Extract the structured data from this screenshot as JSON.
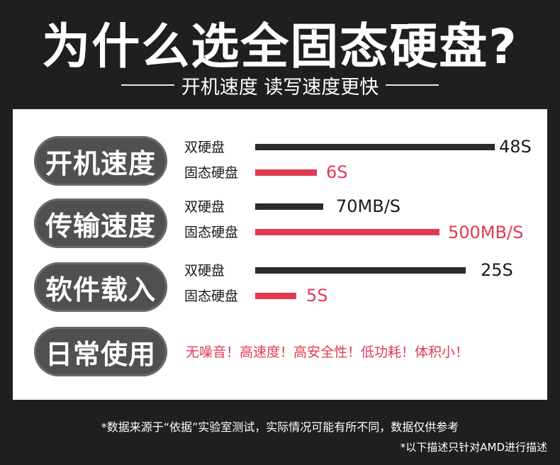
{
  "title": "为什么选全固态硬盘?",
  "subtitle": "开机速度 读写速度更快",
  "rows": [
    {
      "category": "开机速度",
      "hdd": {
        "label": "双硬盘",
        "value": "48S"
      },
      "ssd": {
        "label": "固态硬盘",
        "value": "6S"
      }
    },
    {
      "category": "传输速度",
      "hdd": {
        "label": "双硬盘",
        "value": "70MB/S"
      },
      "ssd": {
        "label": "固态硬盘",
        "value": "500MB/S"
      }
    },
    {
      "category": "软件载入",
      "hdd": {
        "label": "双硬盘",
        "value": "25S"
      },
      "ssd": {
        "label": "固态硬盘",
        "value": "5S"
      }
    }
  ],
  "daily": {
    "category": "日常使用",
    "text": "无噪音！高速度！高安全性！低功耗！体积小！"
  },
  "footnote": "*数据来源于“依据”实验室测试，实际情况可能有所不同，数据仅供参考",
  "footnote2": "*以下描述只针对AMD进行描述",
  "colors": {
    "ssd": "#e03a52",
    "hdd": "#2c2c2e",
    "pill": "#505052"
  }
}
